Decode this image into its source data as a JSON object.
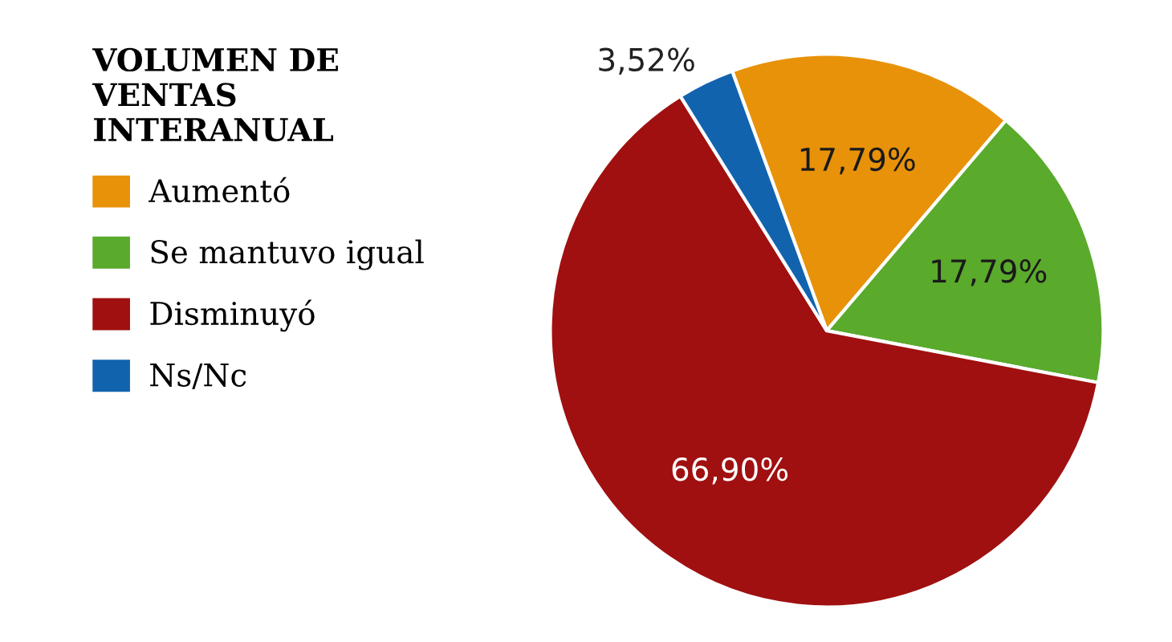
{
  "chart_data": {
    "type": "pie",
    "legend_title": "VOLUMEN DE\nVENTAS\nINTERANUAL",
    "categories": [
      "Aumentó",
      "Se mantuvo igual",
      "Disminuyó",
      "Ns/Nc"
    ],
    "values": [
      17.79,
      17.79,
      66.9,
      3.52
    ],
    "colors": [
      "#e8920a",
      "#5aaa2c",
      "#a01010",
      "#1263ae"
    ],
    "value_labels": [
      "17,79%",
      "17,79%",
      "66,90%",
      "3,52%"
    ],
    "legend": "left"
  }
}
